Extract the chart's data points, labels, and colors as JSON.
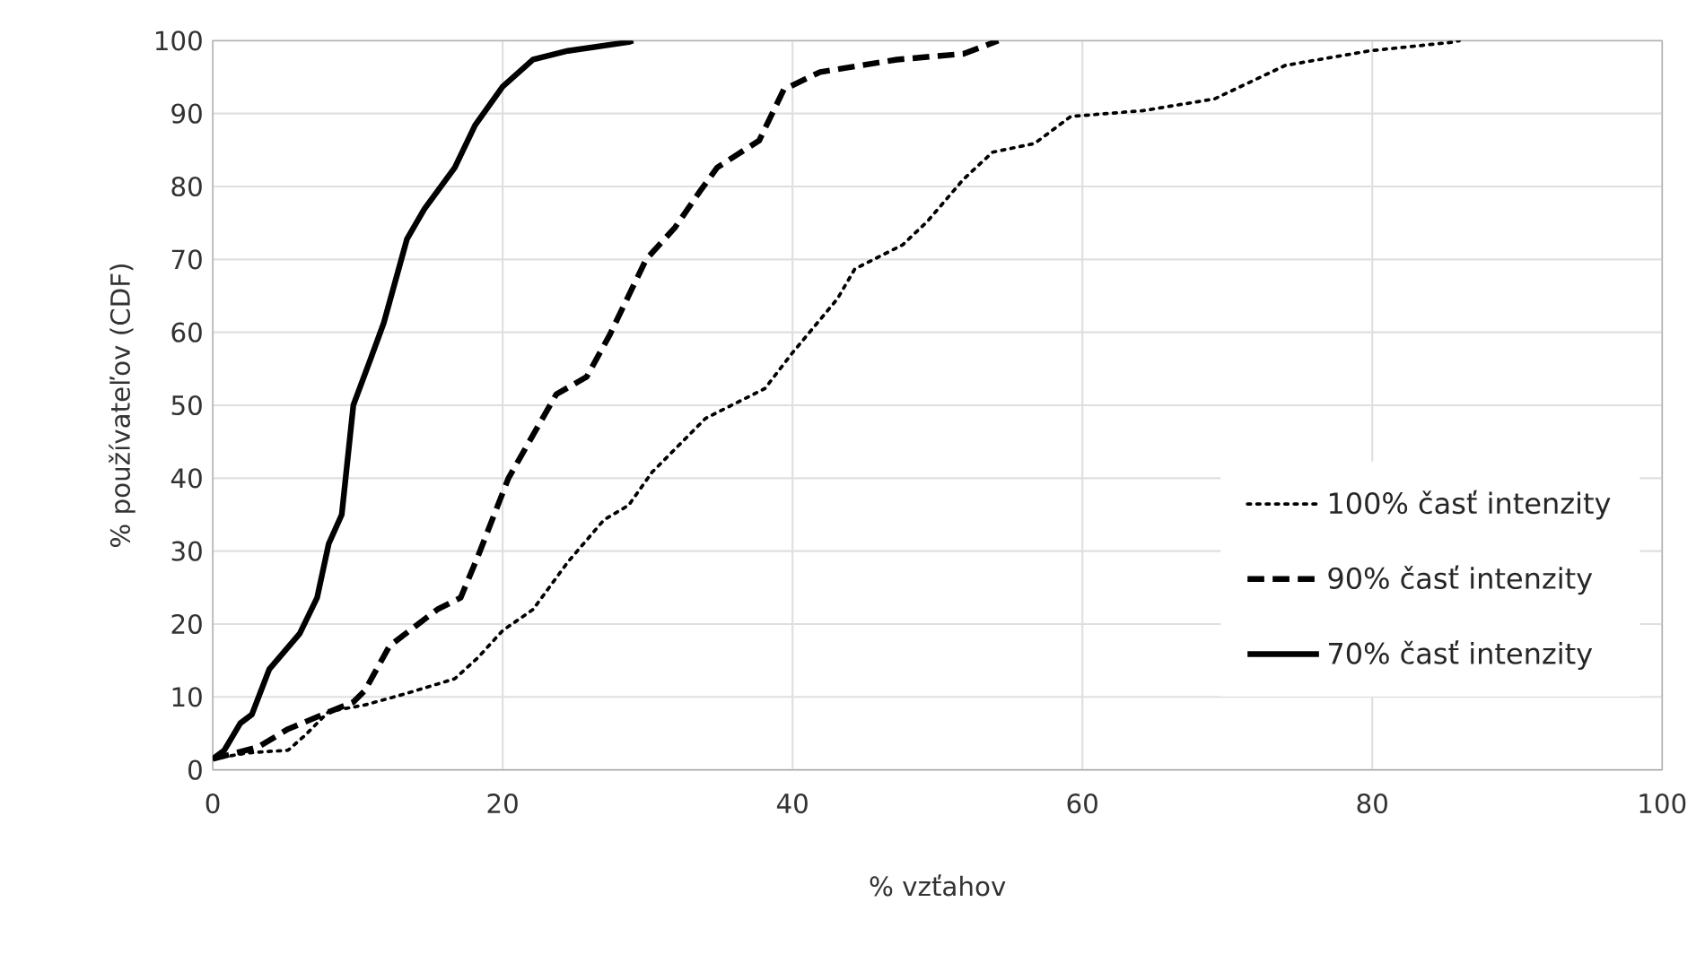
{
  "chart_data": {
    "type": "line",
    "xlabel": "% vzťahov",
    "ylabel": "% používateľov (CDF)",
    "xlim": [
      0,
      100
    ],
    "ylim": [
      0,
      100
    ],
    "xticks": [
      0,
      20,
      40,
      60,
      80,
      100
    ],
    "yticks": [
      0,
      10,
      20,
      30,
      40,
      50,
      60,
      70,
      80,
      90,
      100
    ],
    "grid": true,
    "legend": "bottom right",
    "series": [
      {
        "name": "100% časť intenzity",
        "color": "#000000",
        "line_style": "dotted",
        "x": [
          0,
          2.3,
          5.2,
          6.4,
          8,
          10.5,
          13.4,
          16.7,
          18.3,
          20,
          22.1,
          24.5,
          27,
          28.7,
          30.3,
          34,
          38.1,
          40,
          43.1,
          44.3,
          47.6,
          49.3,
          51.8,
          53.8,
          56.7,
          59.2,
          64.2,
          69.1,
          74,
          79.8,
          85.6,
          86
        ],
        "values": [
          1.5,
          2.3,
          2.7,
          4.8,
          8,
          8.9,
          10.5,
          12.5,
          15.4,
          19.1,
          22,
          28.5,
          34.3,
          36.3,
          40.8,
          48.2,
          52.3,
          57.2,
          64.6,
          68.7,
          72,
          75.2,
          81,
          84.7,
          85.9,
          89.6,
          90.4,
          92,
          96.6,
          98.6,
          99.8,
          100
        ]
      },
      {
        "name": "90% časť intenzity",
        "color": "#000000",
        "line_style": "dashed",
        "x": [
          0,
          3.1,
          5.2,
          7.6,
          9.7,
          10.5,
          12.2,
          15.5,
          17.1,
          18.3,
          20.4,
          23.7,
          25.8,
          27.4,
          29.9,
          31.9,
          33.6,
          34.8,
          37.7,
          39.4,
          41.9,
          47.2,
          51.8,
          54.2
        ],
        "values": [
          1.5,
          3.1,
          5.6,
          7.6,
          9.3,
          10.9,
          17,
          22,
          23.6,
          29.3,
          40,
          51.5,
          53.9,
          59.7,
          70,
          74.4,
          79.3,
          82.6,
          86.3,
          93.3,
          95.7,
          97.4,
          98.2,
          100
        ]
      },
      {
        "name": "70% časť intenzity",
        "color": "#000000",
        "line_style": "solid",
        "x": [
          0,
          0.8,
          1.9,
          2.7,
          3.9,
          6,
          7.2,
          8,
          8.9,
          9.7,
          10.9,
          11.8,
          13.4,
          14.6,
          16.7,
          18.1,
          20,
          22.1,
          24.5,
          28.7,
          29
        ],
        "values": [
          1.5,
          2.7,
          6.4,
          7.6,
          13.8,
          18.7,
          23.6,
          31,
          35,
          50,
          56.4,
          61.3,
          72.8,
          76.9,
          82.6,
          88.4,
          93.7,
          97.4,
          98.6,
          99.8,
          100
        ]
      }
    ]
  }
}
